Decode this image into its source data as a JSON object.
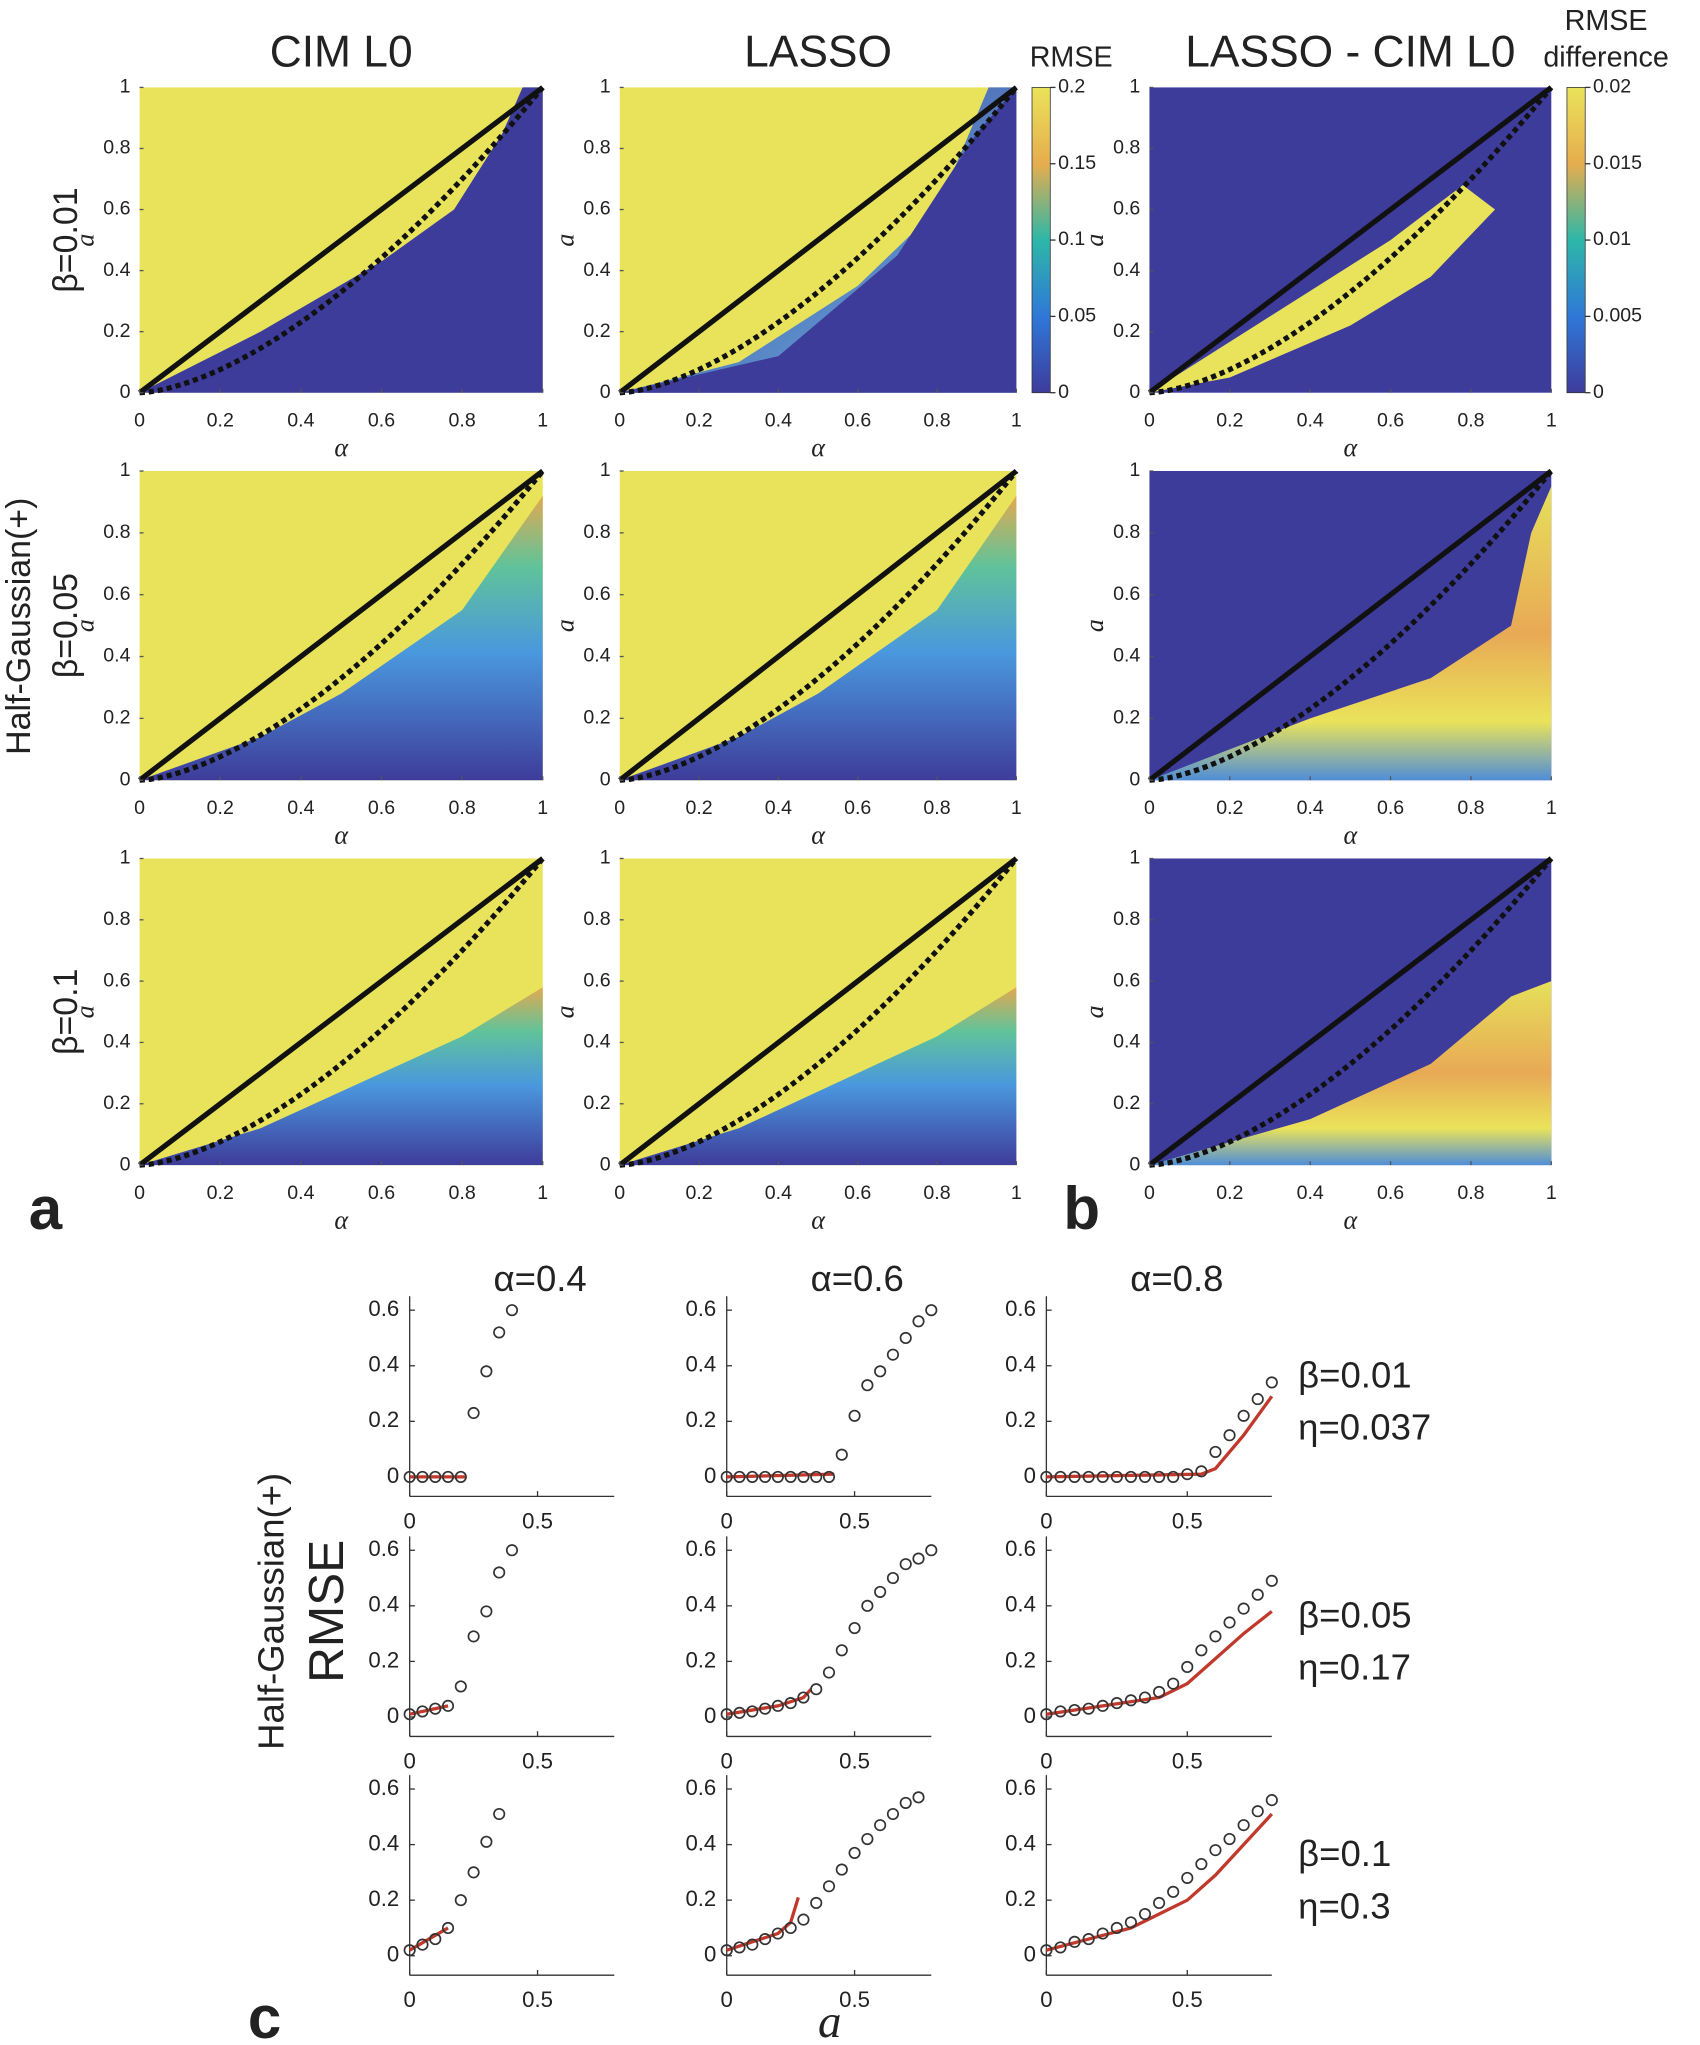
{
  "figure": {
    "panel_labels": [
      "a",
      "b",
      "c"
    ],
    "group_label_top": "Half-Gaussian(+)",
    "group_label_bottom": "Half-Gaussian(+)",
    "c_ylabel": "RMSE",
    "c_xlabel": "a"
  },
  "chart_data": [
    {
      "type": "heatmap",
      "title": "CIM L0",
      "row_label": "β=0.01",
      "xlabel": "α",
      "ylabel": "a",
      "xlim": [
        0,
        1
      ],
      "ylim": [
        0,
        1
      ],
      "xticks": [
        0,
        0.2,
        0.4,
        0.6,
        0.8,
        1
      ],
      "yticks": [
        0,
        0.2,
        0.4,
        0.6,
        0.8,
        1
      ]
    },
    {
      "type": "heatmap",
      "title": "LASSO",
      "xlabel": "α",
      "ylabel": "a",
      "xlim": [
        0,
        1
      ],
      "ylim": [
        0,
        1
      ],
      "xticks": [
        0,
        0.2,
        0.4,
        0.6,
        0.8,
        1
      ],
      "yticks": [
        0,
        0.2,
        0.4,
        0.6,
        0.8,
        1
      ],
      "colorbar": {
        "label_lines": [
          "RMSE"
        ],
        "lim": [
          0,
          0.2
        ],
        "ticks": [
          0,
          0.05,
          0.1,
          0.15,
          0.2
        ]
      }
    },
    {
      "type": "heatmap",
      "title": "LASSO - CIM L0",
      "xlabel": "α",
      "ylabel": "a",
      "xlim": [
        0,
        1
      ],
      "ylim": [
        0,
        1
      ],
      "xticks": [
        0,
        0.2,
        0.4,
        0.6,
        0.8,
        1
      ],
      "yticks": [
        0,
        0.2,
        0.4,
        0.6,
        0.8,
        1
      ],
      "colorbar": {
        "label_lines": [
          "RMSE",
          "difference"
        ],
        "lim": [
          0,
          0.02
        ],
        "ticks": [
          0,
          0.005,
          0.01,
          0.015,
          0.02
        ]
      }
    },
    {
      "type": "heatmap",
      "row_label": "β=0.05",
      "xlabel": "α",
      "ylabel": "a",
      "xlim": [
        0,
        1
      ],
      "ylim": [
        0,
        1
      ],
      "xticks": [
        0,
        0.2,
        0.4,
        0.6,
        0.8,
        1
      ],
      "yticks": [
        0,
        0.2,
        0.4,
        0.6,
        0.8,
        1
      ]
    },
    {
      "type": "heatmap",
      "xlabel": "α",
      "ylabel": "a",
      "xlim": [
        0,
        1
      ],
      "ylim": [
        0,
        1
      ],
      "xticks": [
        0,
        0.2,
        0.4,
        0.6,
        0.8,
        1
      ],
      "yticks": [
        0,
        0.2,
        0.4,
        0.6,
        0.8,
        1
      ]
    },
    {
      "type": "heatmap",
      "xlabel": "α",
      "ylabel": "a",
      "xlim": [
        0,
        1
      ],
      "ylim": [
        0,
        1
      ],
      "xticks": [
        0,
        0.2,
        0.4,
        0.6,
        0.8,
        1
      ],
      "yticks": [
        0,
        0.2,
        0.4,
        0.6,
        0.8,
        1
      ]
    },
    {
      "type": "heatmap",
      "row_label": "β=0.1",
      "xlabel": "α",
      "ylabel": "a",
      "xlim": [
        0,
        1
      ],
      "ylim": [
        0,
        1
      ],
      "xticks": [
        0,
        0.2,
        0.4,
        0.6,
        0.8,
        1
      ],
      "yticks": [
        0,
        0.2,
        0.4,
        0.6,
        0.8,
        1
      ]
    },
    {
      "type": "heatmap",
      "xlabel": "α",
      "ylabel": "a",
      "xlim": [
        0,
        1
      ],
      "ylim": [
        0,
        1
      ],
      "xticks": [
        0,
        0.2,
        0.4,
        0.6,
        0.8,
        1
      ],
      "yticks": [
        0,
        0.2,
        0.4,
        0.6,
        0.8,
        1
      ]
    },
    {
      "type": "heatmap",
      "xlabel": "α",
      "ylabel": "a",
      "xlim": [
        0,
        1
      ],
      "ylim": [
        0,
        1
      ],
      "xticks": [
        0,
        0.2,
        0.4,
        0.6,
        0.8,
        1
      ],
      "yticks": [
        0,
        0.2,
        0.4,
        0.6,
        0.8,
        1
      ]
    },
    {
      "type": "scatter",
      "title": "α=0.4",
      "color": "#333333",
      "line_color": "#c0392b",
      "xlim": [
        0,
        0.8
      ],
      "ylim": [
        -0.07,
        0.65
      ],
      "xticks": [
        0,
        0.5
      ],
      "yticks": [
        0,
        0.2,
        0.4,
        0.6
      ],
      "x": [
        0,
        0.05,
        0.1,
        0.15,
        0.2,
        0.25,
        0.3,
        0.35,
        0.4
      ],
      "values": [
        0,
        0,
        0,
        0,
        0,
        0.23,
        0.38,
        0.52,
        0.6
      ],
      "line_x": [
        0,
        0.22
      ],
      "line_values": [
        0,
        0
      ]
    },
    {
      "type": "scatter",
      "title": "α=0.6",
      "color": "#333333",
      "line_color": "#c0392b",
      "xlim": [
        0,
        0.8
      ],
      "ylim": [
        -0.07,
        0.65
      ],
      "xticks": [
        0,
        0.5
      ],
      "yticks": [
        0,
        0.2,
        0.4,
        0.6
      ],
      "x": [
        0,
        0.05,
        0.1,
        0.15,
        0.2,
        0.25,
        0.3,
        0.35,
        0.4,
        0.45,
        0.5,
        0.55,
        0.6,
        0.65,
        0.7,
        0.75,
        0.8
      ],
      "values": [
        0,
        0,
        0,
        0,
        0,
        0,
        0,
        0,
        0,
        0.08,
        0.22,
        0.33,
        0.38,
        0.44,
        0.5,
        0.56,
        0.6
      ],
      "line_x": [
        0,
        0.42
      ],
      "line_values": [
        0,
        0.01
      ]
    },
    {
      "type": "scatter",
      "title": "α=0.8",
      "annotations": [
        "β=0.01",
        "η=0.037"
      ],
      "color": "#333333",
      "line_color": "#c0392b",
      "xlim": [
        0,
        0.8
      ],
      "ylim": [
        -0.07,
        0.65
      ],
      "xticks": [
        0,
        0.5
      ],
      "yticks": [
        0,
        0.2,
        0.4,
        0.6
      ],
      "x": [
        0,
        0.05,
        0.1,
        0.15,
        0.2,
        0.25,
        0.3,
        0.35,
        0.4,
        0.45,
        0.5,
        0.55,
        0.6,
        0.65,
        0.7,
        0.75,
        0.8
      ],
      "values": [
        0,
        0,
        0,
        0,
        0,
        0,
        0,
        0,
        0,
        0,
        0.01,
        0.02,
        0.09,
        0.15,
        0.22,
        0.28,
        0.34
      ],
      "line_x": [
        0,
        0.55,
        0.6,
        0.7,
        0.8
      ],
      "line_values": [
        0,
        0.01,
        0.03,
        0.15,
        0.29
      ]
    },
    {
      "type": "scatter",
      "color": "#333333",
      "line_color": "#c0392b",
      "xlim": [
        0,
        0.8
      ],
      "ylim": [
        -0.07,
        0.65
      ],
      "xticks": [
        0,
        0.5
      ],
      "yticks": [
        0,
        0.2,
        0.4,
        0.6
      ],
      "x": [
        0,
        0.05,
        0.1,
        0.15,
        0.2,
        0.25,
        0.3,
        0.35,
        0.4
      ],
      "values": [
        0.01,
        0.02,
        0.03,
        0.04,
        0.11,
        0.29,
        0.38,
        0.52,
        0.6
      ],
      "line_x": [
        0,
        0.15
      ],
      "line_values": [
        0.01,
        0.04
      ]
    },
    {
      "type": "scatter",
      "color": "#333333",
      "line_color": "#c0392b",
      "xlim": [
        0,
        0.8
      ],
      "ylim": [
        -0.07,
        0.65
      ],
      "xticks": [
        0,
        0.5
      ],
      "yticks": [
        0,
        0.2,
        0.4,
        0.6
      ],
      "x": [
        0,
        0.05,
        0.1,
        0.15,
        0.2,
        0.25,
        0.3,
        0.35,
        0.4,
        0.45,
        0.5,
        0.55,
        0.6,
        0.65,
        0.7,
        0.75,
        0.8
      ],
      "values": [
        0.01,
        0.015,
        0.02,
        0.03,
        0.04,
        0.05,
        0.07,
        0.1,
        0.16,
        0.24,
        0.32,
        0.4,
        0.45,
        0.5,
        0.55,
        0.57,
        0.6
      ],
      "line_x": [
        0,
        0.2,
        0.3,
        0.33
      ],
      "line_values": [
        0.01,
        0.04,
        0.07,
        0.1
      ]
    },
    {
      "type": "scatter",
      "annotations": [
        "β=0.05",
        "η=0.17"
      ],
      "color": "#333333",
      "line_color": "#c0392b",
      "xlim": [
        0,
        0.8
      ],
      "ylim": [
        -0.07,
        0.65
      ],
      "xticks": [
        0,
        0.5
      ],
      "yticks": [
        0,
        0.2,
        0.4,
        0.6
      ],
      "x": [
        0,
        0.05,
        0.1,
        0.15,
        0.2,
        0.25,
        0.3,
        0.35,
        0.4,
        0.45,
        0.5,
        0.55,
        0.6,
        0.65,
        0.7,
        0.75,
        0.8
      ],
      "values": [
        0.01,
        0.02,
        0.025,
        0.03,
        0.04,
        0.05,
        0.06,
        0.07,
        0.09,
        0.12,
        0.18,
        0.24,
        0.29,
        0.34,
        0.39,
        0.44,
        0.49
      ],
      "line_x": [
        0,
        0.2,
        0.4,
        0.5,
        0.6,
        0.7,
        0.8
      ],
      "line_values": [
        0.01,
        0.04,
        0.07,
        0.12,
        0.21,
        0.3,
        0.38
      ]
    },
    {
      "type": "scatter",
      "color": "#333333",
      "line_color": "#c0392b",
      "xlim": [
        0,
        0.8
      ],
      "ylim": [
        -0.07,
        0.65
      ],
      "xticks": [
        0,
        0.5
      ],
      "yticks": [
        0,
        0.2,
        0.4,
        0.6
      ],
      "x": [
        0,
        0.05,
        0.1,
        0.15,
        0.2,
        0.25,
        0.3,
        0.35
      ],
      "values": [
        0.02,
        0.04,
        0.06,
        0.1,
        0.2,
        0.3,
        0.41,
        0.51
      ],
      "line_x": [
        0,
        0.15
      ],
      "line_values": [
        0.02,
        0.1
      ]
    },
    {
      "type": "scatter",
      "color": "#333333",
      "line_color": "#c0392b",
      "xlim": [
        0,
        0.8
      ],
      "ylim": [
        -0.07,
        0.65
      ],
      "xticks": [
        0,
        0.5
      ],
      "yticks": [
        0,
        0.2,
        0.4,
        0.6
      ],
      "x": [
        0,
        0.05,
        0.1,
        0.15,
        0.2,
        0.25,
        0.3,
        0.35,
        0.4,
        0.45,
        0.5,
        0.55,
        0.6,
        0.65,
        0.7,
        0.75
      ],
      "values": [
        0.02,
        0.03,
        0.04,
        0.06,
        0.08,
        0.1,
        0.13,
        0.19,
        0.25,
        0.31,
        0.37,
        0.42,
        0.47,
        0.51,
        0.55,
        0.57
      ],
      "line_x": [
        0,
        0.2,
        0.25,
        0.28
      ],
      "line_values": [
        0.02,
        0.08,
        0.12,
        0.21
      ]
    },
    {
      "type": "scatter",
      "annotations": [
        "β=0.1",
        "η=0.3"
      ],
      "color": "#333333",
      "line_color": "#c0392b",
      "xlim": [
        0,
        0.8
      ],
      "ylim": [
        -0.07,
        0.65
      ],
      "xticks": [
        0,
        0.5
      ],
      "yticks": [
        0,
        0.2,
        0.4,
        0.6
      ],
      "x": [
        0,
        0.05,
        0.1,
        0.15,
        0.2,
        0.25,
        0.3,
        0.35,
        0.4,
        0.45,
        0.5,
        0.55,
        0.6,
        0.65,
        0.7,
        0.75,
        0.8
      ],
      "values": [
        0.02,
        0.03,
        0.05,
        0.06,
        0.08,
        0.1,
        0.12,
        0.15,
        0.19,
        0.23,
        0.28,
        0.33,
        0.38,
        0.42,
        0.47,
        0.52,
        0.56
      ],
      "line_x": [
        0,
        0.3,
        0.5,
        0.6,
        0.7,
        0.8
      ],
      "line_values": [
        0.02,
        0.1,
        0.2,
        0.29,
        0.4,
        0.51
      ]
    }
  ]
}
